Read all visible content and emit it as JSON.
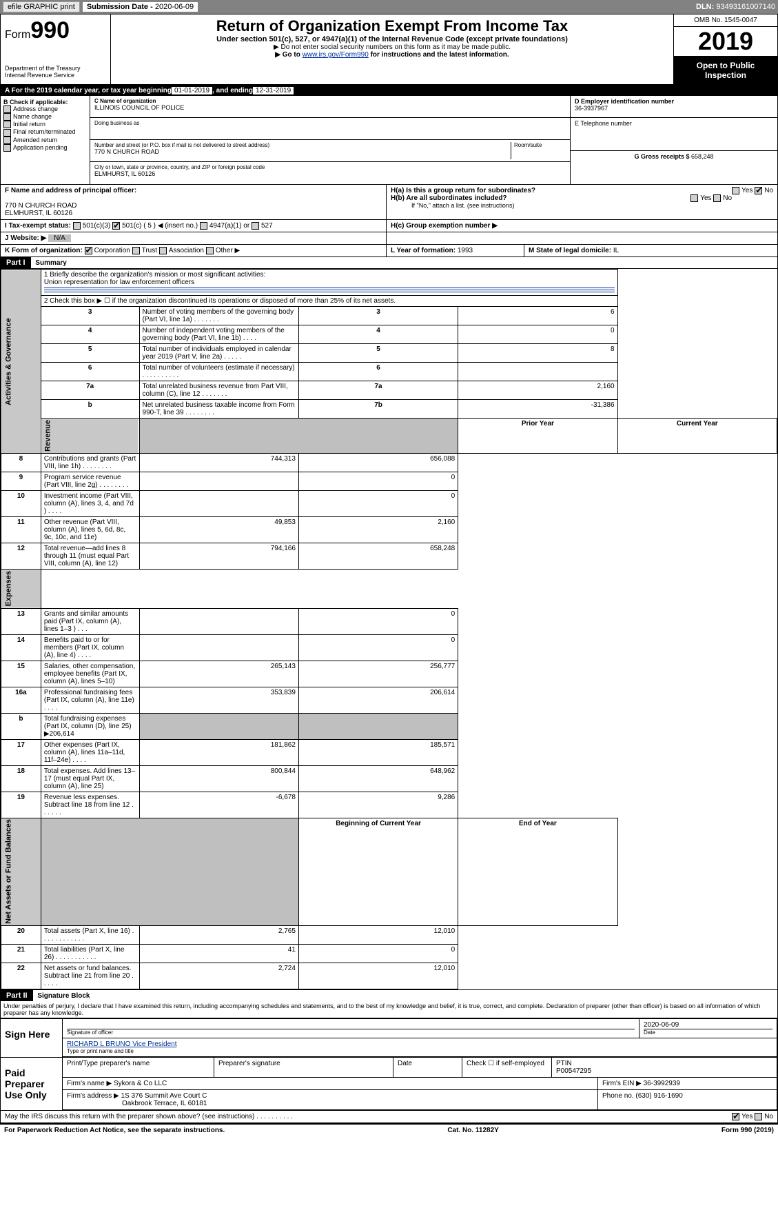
{
  "efile": {
    "graphic_btn": "efile GRAPHIC print",
    "sub_label": "Submission Date - ",
    "sub_date": "2020-06-09",
    "dln_label": "DLN: ",
    "dln": "93493161007140"
  },
  "header": {
    "form_prefix": "Form",
    "form_number": "990",
    "dept": "Department of the Treasury",
    "irs": "Internal Revenue Service",
    "title": "Return of Organization Exempt From Income Tax",
    "subtitle": "Under section 501(c), 527, or 4947(a)(1) of the Internal Revenue Code (except private foundations)",
    "note1": "▶ Do not enter social security numbers on this form as it may be made public.",
    "note2_pre": "▶ Go to ",
    "note2_link": "www.irs.gov/Form990",
    "note2_post": " for instructions and the latest information.",
    "omb": "OMB No. 1545-0047",
    "year": "2019",
    "open": "Open to Public Inspection"
  },
  "rowA": {
    "prefix": "A  For the 2019 calendar year, or tax year beginning ",
    "begin": "01-01-2019",
    "mid": " , and ending ",
    "end": "12-31-2019"
  },
  "colB": {
    "title": "B Check if applicable:",
    "items": [
      "Address change",
      "Name change",
      "Initial return",
      "Final return/terminated",
      "Amended return",
      "Application pending"
    ]
  },
  "colC": {
    "name_label": "C Name of organization",
    "org_name": "ILLINOIS COUNCIL OF POLICE",
    "dba_label": "Doing business as",
    "addr_label": "Number and street (or P.O. box if mail is not delivered to street address)",
    "room_label": "Room/suite",
    "addr": "770 N CHURCH ROAD",
    "city_label": "City or town, state or province, country, and ZIP or foreign postal code",
    "city": "ELMHURST, IL 60126"
  },
  "colDE": {
    "d_label": "D Employer identification number",
    "ein": "36-3937967",
    "e_label": "E Telephone number",
    "g_label": "G Gross receipts $ ",
    "g_val": "658,248"
  },
  "rowF": {
    "label": "F Name and address of principal officer:",
    "addr1": "770 N CHURCH ROAD",
    "addr2": "ELMHURST, IL  60126"
  },
  "rowH": {
    "ha": "H(a)  Is this a group return for subordinates?",
    "hb": "H(b)  Are all subordinates included?",
    "hb_note": "If \"No,\" attach a list. (see instructions)",
    "hc": "H(c)  Group exemption number ▶",
    "yes": "Yes",
    "no": "No"
  },
  "rowI": {
    "label": "I  Tax-exempt status:",
    "opts": [
      "501(c)(3)",
      "501(c) ( 5 ) ◀ (insert no.)",
      "4947(a)(1) or",
      "527"
    ]
  },
  "rowJ": {
    "label": "J  Website: ▶",
    "val": "N/A"
  },
  "rowK": {
    "label": "K Form of organization:",
    "opts": [
      "Corporation",
      "Trust",
      "Association",
      "Other ▶"
    ],
    "l_label": "L Year of formation: ",
    "l_val": "1993",
    "m_label": "M State of legal domicile: ",
    "m_val": "IL"
  },
  "part1": {
    "header": "Part I",
    "title": "Summary",
    "line1_label": "1  Briefly describe the organization's mission or most significant activities:",
    "line1_val": "Union representation for law enforcement officers",
    "line2": "2  Check this box ▶ ☐ if the organization discontinued its operations or disposed of more than 25% of its net assets.",
    "vtabs": [
      "Activities & Governance",
      "Revenue",
      "Expenses",
      "Net Assets or Fund Balances"
    ],
    "gov_rows": [
      {
        "n": "3",
        "t": "Number of voting members of the governing body (Part VI, line 1a)  .     .     .     .     .     .     .",
        "k": "3",
        "v": "6"
      },
      {
        "n": "4",
        "t": "Number of independent voting members of the governing body (Part VI, line 1b)  .     .     .     .",
        "k": "4",
        "v": "0"
      },
      {
        "n": "5",
        "t": "Total number of individuals employed in calendar year 2019 (Part V, line 2a)  .     .     .     .     .",
        "k": "5",
        "v": "8"
      },
      {
        "n": "6",
        "t": "Total number of volunteers (estimate if necessary)  .     .     .     .     .     .     .     .     .     .",
        "k": "6",
        "v": ""
      },
      {
        "n": "7a",
        "t": "Total unrelated business revenue from Part VIII, column (C), line 12  .     .     .     .     .     .     .",
        "k": "7a",
        "v": "2,160"
      },
      {
        "n": "b",
        "t": "Net unrelated business taxable income from Form 990-T, line 39  .     .     .     .     .     .     .     .",
        "k": "7b",
        "v": "-31,386"
      }
    ],
    "col_hdr_prior": "Prior Year",
    "col_hdr_curr": "Current Year",
    "rev_rows": [
      {
        "n": "8",
        "t": "Contributions and grants (Part VIII, line 1h)  .     .     .     .     .     .     .     .",
        "p": "744,313",
        "c": "656,088"
      },
      {
        "n": "9",
        "t": "Program service revenue (Part VIII, line 2g)  .     .     .     .     .     .     .     .",
        "p": "",
        "c": "0"
      },
      {
        "n": "10",
        "t": "Investment income (Part VIII, column (A), lines 3, 4, and 7d )  .     .     .     .",
        "p": "",
        "c": "0"
      },
      {
        "n": "11",
        "t": "Other revenue (Part VIII, column (A), lines 5, 6d, 8c, 9c, 10c, and 11e)",
        "p": "49,853",
        "c": "2,160"
      },
      {
        "n": "12",
        "t": "Total revenue—add lines 8 through 11 (must equal Part VIII, column (A), line 12)",
        "p": "794,166",
        "c": "658,248"
      }
    ],
    "exp_rows": [
      {
        "n": "13",
        "t": "Grants and similar amounts paid (Part IX, column (A), lines 1–3 )  .     .     .",
        "p": "",
        "c": "0"
      },
      {
        "n": "14",
        "t": "Benefits paid to or for members (Part IX, column (A), line 4)  .     .     .     .",
        "p": "",
        "c": "0"
      },
      {
        "n": "15",
        "t": "Salaries, other compensation, employee benefits (Part IX, column (A), lines 5–10)",
        "p": "265,143",
        "c": "256,777"
      },
      {
        "n": "16a",
        "t": "Professional fundraising fees (Part IX, column (A), line 11e)  .     .     .     .",
        "p": "353,839",
        "c": "206,614"
      },
      {
        "n": "b",
        "t": "Total fundraising expenses (Part IX, column (D), line 25) ▶206,614",
        "p": "grey",
        "c": "grey"
      },
      {
        "n": "17",
        "t": "Other expenses (Part IX, column (A), lines 11a–11d, 11f–24e)  .     .     .     .",
        "p": "181,862",
        "c": "185,571"
      },
      {
        "n": "18",
        "t": "Total expenses. Add lines 13–17 (must equal Part IX, column (A), line 25)",
        "p": "800,844",
        "c": "648,962"
      },
      {
        "n": "19",
        "t": "Revenue less expenses. Subtract line 18 from line 12  .     .     .     .     .     .",
        "p": "-6,678",
        "c": "9,286"
      }
    ],
    "col_hdr_begin": "Beginning of Current Year",
    "col_hdr_end": "End of Year",
    "net_rows": [
      {
        "n": "20",
        "t": "Total assets (Part X, line 16)  .     .     .     .     .     .     .     .     .     .     .     .",
        "p": "2,765",
        "c": "12,010"
      },
      {
        "n": "21",
        "t": "Total liabilities (Part X, line 26)  .     .     .     .     .     .     .     .     .     .     .",
        "p": "41",
        "c": "0"
      },
      {
        "n": "22",
        "t": "Net assets or fund balances. Subtract line 21 from line 20  .     .     .     .     .",
        "p": "2,724",
        "c": "12,010"
      }
    ]
  },
  "part2": {
    "header": "Part II",
    "title": "Signature Block",
    "perjury": "Under penalties of perjury, I declare that I have examined this return, including accompanying schedules and statements, and to the best of my knowledge and belief, it is true, correct, and complete. Declaration of preparer (other than officer) is based on all information of which preparer has any knowledge.",
    "sign_here": "Sign Here",
    "sig_officer": "Signature of officer",
    "date": "Date",
    "sig_date": "2020-06-09",
    "name_title": "RICHARD L BRUNO Vice President",
    "name_title_label": "Type or print name and title",
    "paid": "Paid Preparer Use Only",
    "prep_name_label": "Print/Type preparer's name",
    "prep_sig_label": "Preparer's signature",
    "prep_date_label": "Date",
    "check_if": "Check ☐ if self-employed",
    "ptin_label": "PTIN",
    "ptin": "P00547295",
    "firm_name_label": "Firm's name    ▶ ",
    "firm_name": "Sykora & Co LLC",
    "firm_ein_label": "Firm's EIN ▶ ",
    "firm_ein": "36-3992939",
    "firm_addr_label": "Firm's address ▶ ",
    "firm_addr1": "1S 376 Summit Ave Court C",
    "firm_addr2": "Oakbrook Terrace, IL  60181",
    "phone_label": "Phone no. ",
    "phone": "(630) 916-1690",
    "may_irs": "May the IRS discuss this return with the preparer shown above? (see instructions)  .     .     .     .     .     .     .     .     .     .",
    "yes": "Yes",
    "no": "No"
  },
  "footer": {
    "left": "For Paperwork Reduction Act Notice, see the separate instructions.",
    "mid": "Cat. No. 11282Y",
    "right": "Form 990 (2019)"
  }
}
